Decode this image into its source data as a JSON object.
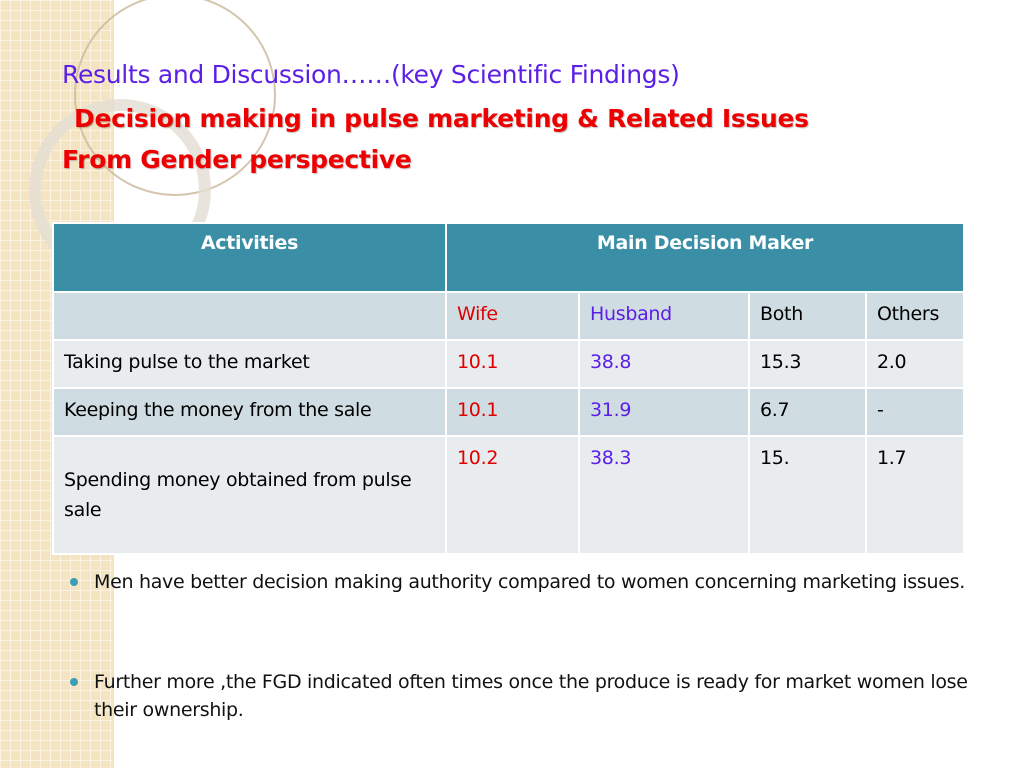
{
  "title": "Results  and  Discussion……(key Scientific Findings)",
  "subtitle_line1": "Decision making in pulse marketing & Related Issues",
  "subtitle_line2": "From Gender perspective",
  "table": {
    "headers": [
      "Activities",
      "Main Decision Maker"
    ],
    "subheaders": [
      "",
      "Wife",
      "Husband",
      "Both",
      "Others"
    ],
    "rows": [
      {
        "activity": "Taking   pulse to the market",
        "wife": "10.1",
        "husband": "38.8",
        "both": "15.3",
        "others": "2.0"
      },
      {
        "activity": "Keeping   the money from the sale",
        "wife": "10.1",
        "husband": "31.9",
        "both": "6.7",
        "others": "-"
      },
      {
        "activity": "Spending   money obtained from pulse sale",
        "wife": "10.2",
        "husband": "38.3",
        "both": "15.",
        "others": "1.7"
      }
    ]
  },
  "bullets": [
    "Men    have better  decision making authority  compared to women  concerning marketing issues.",
    "Further more ,the FGD indicated often times once the produce is ready for market women lose their ownership."
  ],
  "colors": {
    "title": "#5b1fe6",
    "subtitle": "#ee0000",
    "header": "#3a8fa6"
  }
}
